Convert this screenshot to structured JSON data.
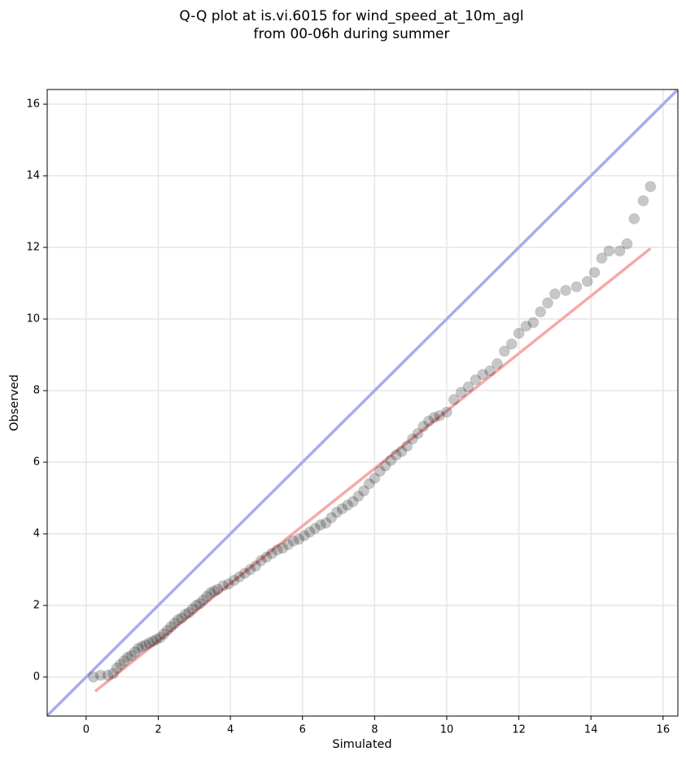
{
  "chart_data": {
    "type": "scatter",
    "title": [
      "Q-Q plot at is.vi.6015 for wind_speed_at_10m_agl",
      "from 00-06h during summer"
    ],
    "xlabel": "Simulated",
    "ylabel": "Observed",
    "xlim": [
      -1.08,
      16.41
    ],
    "ylim": [
      -1.09,
      16.41
    ],
    "xticks": [
      0,
      2,
      4,
      6,
      8,
      10,
      12,
      14,
      16
    ],
    "yticks": [
      0,
      2,
      4,
      6,
      8,
      10,
      12,
      14,
      16
    ],
    "grid": true,
    "color": "#000000",
    "x": [
      0.2,
      0.4,
      0.6,
      0.75,
      0.85,
      0.95,
      1.05,
      1.15,
      1.25,
      1.35,
      1.45,
      1.55,
      1.65,
      1.75,
      1.85,
      1.95,
      2.05,
      2.15,
      2.25,
      2.35,
      2.45,
      2.55,
      2.65,
      2.75,
      2.85,
      2.95,
      3.05,
      3.15,
      3.25,
      3.35,
      3.45,
      3.55,
      3.65,
      3.8,
      3.95,
      4.1,
      4.25,
      4.4,
      4.55,
      4.7,
      4.85,
      5.0,
      5.15,
      5.3,
      5.45,
      5.6,
      5.75,
      5.9,
      6.05,
      6.2,
      6.35,
      6.5,
      6.65,
      6.8,
      6.95,
      7.1,
      7.25,
      7.4,
      7.55,
      7.7,
      7.85,
      8.0,
      8.15,
      8.3,
      8.45,
      8.6,
      8.75,
      8.9,
      9.05,
      9.2,
      9.35,
      9.5,
      9.65,
      9.8,
      10.0,
      10.2,
      10.4,
      10.6,
      10.8,
      11.0,
      11.2,
      11.4,
      11.6,
      11.8,
      12.0,
      12.2,
      12.4,
      12.6,
      12.8,
      13.0,
      13.3,
      13.6,
      13.9,
      14.1,
      14.3,
      14.5,
      14.8,
      15.0,
      15.2,
      15.45,
      15.65
    ],
    "values": [
      0,
      0.05,
      0.05,
      0.1,
      0.25,
      0.35,
      0.45,
      0.55,
      0.6,
      0.7,
      0.8,
      0.85,
      0.9,
      0.95,
      1.0,
      1.05,
      1.1,
      1.2,
      1.3,
      1.4,
      1.5,
      1.6,
      1.65,
      1.75,
      1.8,
      1.9,
      2.0,
      2.05,
      2.15,
      2.25,
      2.35,
      2.4,
      2.45,
      2.55,
      2.6,
      2.7,
      2.8,
      2.9,
      3.0,
      3.1,
      3.25,
      3.35,
      3.45,
      3.55,
      3.6,
      3.7,
      3.8,
      3.85,
      3.95,
      4.05,
      4.15,
      4.25,
      4.3,
      4.45,
      4.6,
      4.7,
      4.8,
      4.9,
      5.05,
      5.2,
      5.4,
      5.55,
      5.75,
      5.9,
      6.05,
      6.2,
      6.3,
      6.45,
      6.65,
      6.8,
      7.0,
      7.15,
      7.25,
      7.3,
      7.4,
      7.75,
      7.95,
      8.1,
      8.3,
      8.45,
      8.55,
      8.75,
      9.1,
      9.3,
      9.6,
      9.8,
      9.9,
      10.2,
      10.45,
      10.7,
      10.8,
      10.9,
      11.05,
      11.3,
      11.7,
      11.9,
      11.9,
      12.1,
      12.8,
      13.3,
      13.7
    ],
    "lines": [
      {
        "color": "#aaaaf0",
        "x": [
          -1.08,
          16.41
        ],
        "values": [
          -1.08,
          16.41
        ]
      },
      {
        "color": "#f4aaaa",
        "x": [
          0.25,
          15.65
        ],
        "values": [
          -0.4,
          11.97
        ]
      }
    ]
  }
}
